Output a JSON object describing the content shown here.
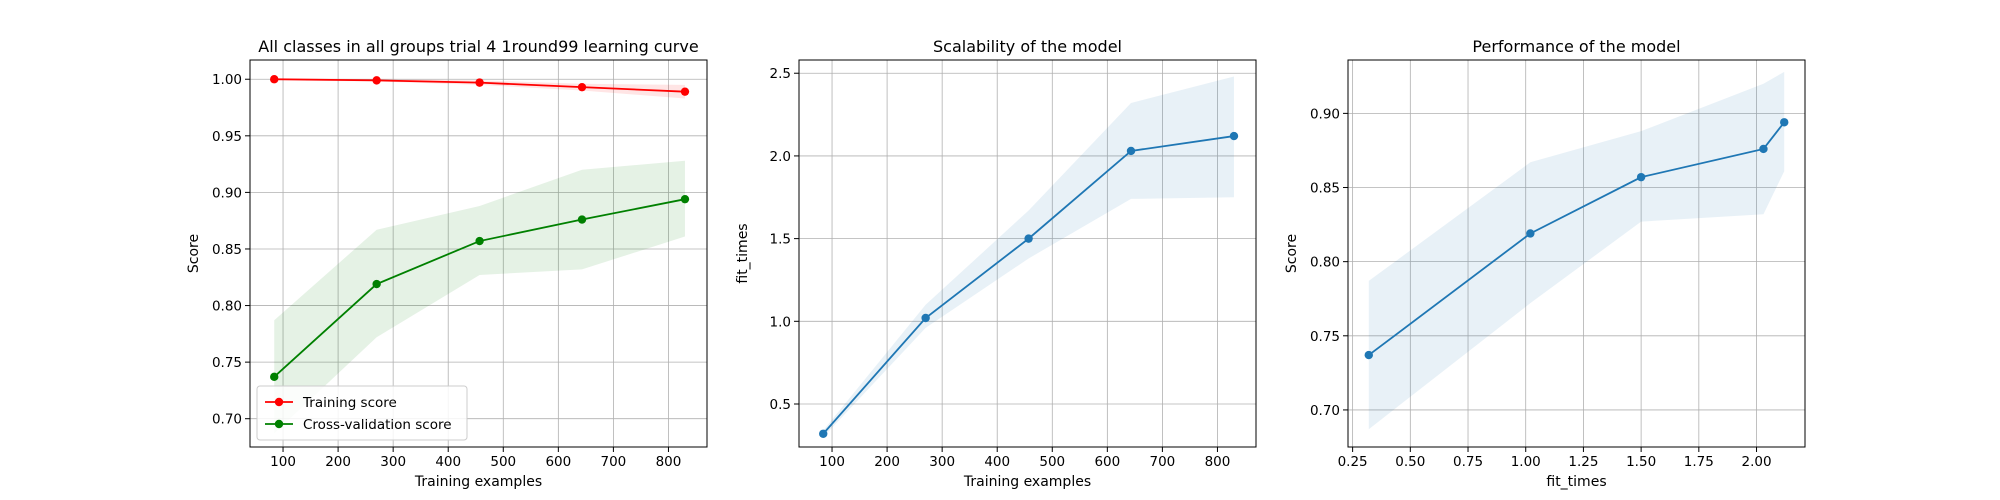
{
  "chart_data": [
    {
      "type": "line",
      "title": "All classes in all groups trial 4 1round99 learning curve",
      "xlabel": "Training examples",
      "ylabel": "Score",
      "xlim": [
        40,
        870
      ],
      "ylim": [
        0.675,
        1.017
      ],
      "xticks": [
        100,
        200,
        300,
        400,
        500,
        600,
        700,
        800
      ],
      "yticks": [
        0.7,
        0.75,
        0.8,
        0.85,
        0.9,
        0.95,
        1.0
      ],
      "ytick_decimals": 2,
      "grid": true,
      "legend": "lower-left",
      "x": [
        84,
        270,
        457,
        643,
        830
      ],
      "series": [
        {
          "name": "Training score",
          "color": "#ff0000",
          "marker": true,
          "values": [
            1.0,
            0.999,
            0.997,
            0.993,
            0.989
          ],
          "band_lower": [
            0.999,
            0.998,
            0.995,
            0.99,
            0.983
          ],
          "band_upper": [
            1.001,
            1.0,
            0.999,
            0.996,
            0.995
          ]
        },
        {
          "name": "Cross-validation score",
          "color": "#008000",
          "marker": true,
          "values": [
            0.737,
            0.819,
            0.857,
            0.876,
            0.894
          ],
          "band_lower": [
            0.687,
            0.772,
            0.827,
            0.832,
            0.861
          ],
          "band_upper": [
            0.787,
            0.867,
            0.888,
            0.92,
            0.928
          ]
        }
      ]
    },
    {
      "type": "line",
      "title": "Scalability of the model",
      "xlabel": "Training examples",
      "ylabel": "fit_times",
      "xlim": [
        40,
        870
      ],
      "ylim": [
        0.24,
        2.58
      ],
      "xticks": [
        100,
        200,
        300,
        400,
        500,
        600,
        700,
        800
      ],
      "yticks": [
        0.5,
        1.0,
        1.5,
        2.0,
        2.5
      ],
      "ytick_decimals": 1,
      "grid": true,
      "x": [
        84,
        270,
        457,
        643,
        830
      ],
      "series": [
        {
          "color": "#1f77b4",
          "marker": true,
          "values": [
            0.32,
            1.02,
            1.5,
            2.03,
            2.12
          ],
          "band_lower": [
            0.3,
            0.96,
            1.38,
            1.74,
            1.75
          ],
          "band_upper": [
            0.34,
            1.1,
            1.67,
            2.32,
            2.48
          ]
        }
      ]
    },
    {
      "type": "line",
      "title": "Performance of the model",
      "xlabel": "fit_times",
      "ylabel": "Score",
      "xlim": [
        0.23,
        2.21
      ],
      "ylim": [
        0.675,
        0.936
      ],
      "xticks": [
        0.25,
        0.5,
        0.75,
        1.0,
        1.25,
        1.5,
        1.75,
        2.0
      ],
      "xtick_decimals": 2,
      "yticks": [
        0.7,
        0.75,
        0.8,
        0.85,
        0.9
      ],
      "ytick_decimals": 2,
      "grid": true,
      "x": [
        0.32,
        1.02,
        1.5,
        2.03,
        2.12
      ],
      "series": [
        {
          "color": "#1f77b4",
          "marker": true,
          "values": [
            0.737,
            0.819,
            0.857,
            0.876,
            0.894
          ],
          "band_lower": [
            0.687,
            0.772,
            0.827,
            0.832,
            0.861
          ],
          "band_upper": [
            0.787,
            0.867,
            0.888,
            0.92,
            0.928
          ]
        }
      ]
    }
  ]
}
